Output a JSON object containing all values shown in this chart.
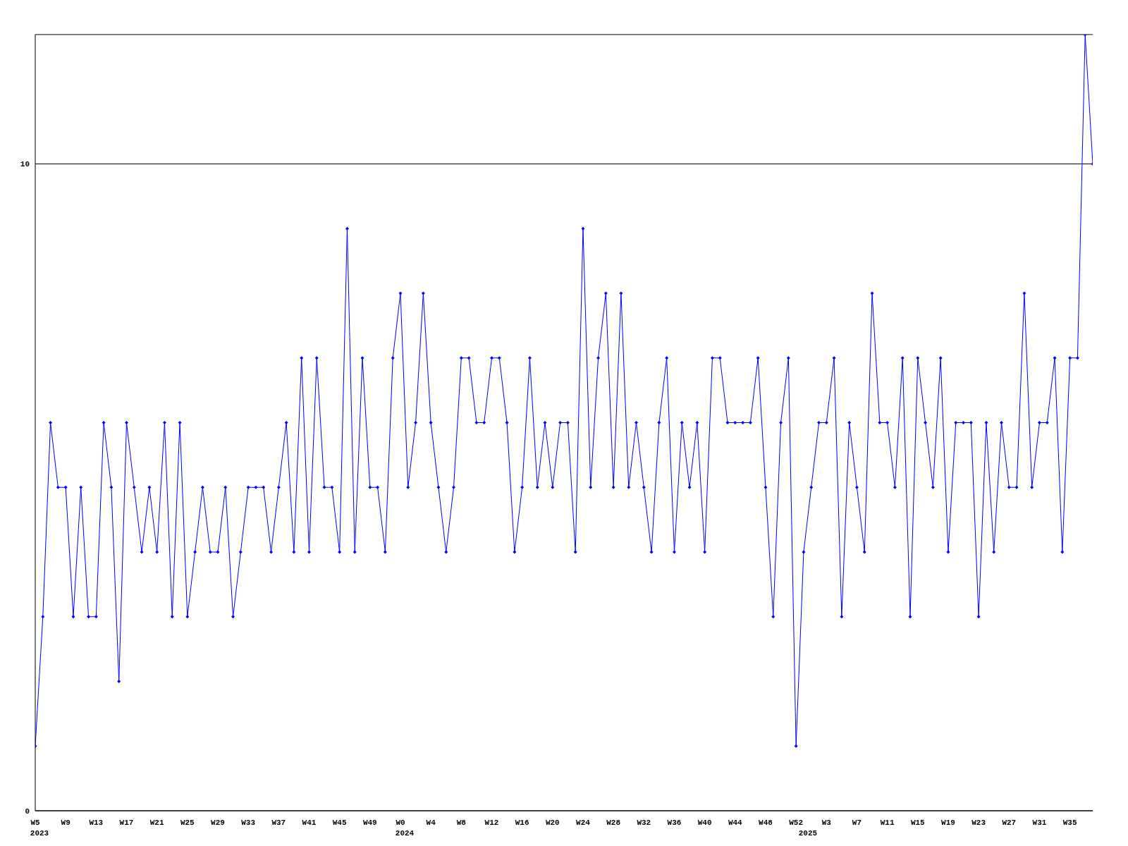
{
  "chart_data": {
    "type": "line",
    "categories": [
      "W5",
      null,
      null,
      null,
      "W9",
      null,
      null,
      null,
      "W13",
      null,
      null,
      null,
      "W17",
      null,
      null,
      null,
      "W21",
      null,
      null,
      null,
      "W25",
      null,
      null,
      null,
      "W29",
      null,
      null,
      null,
      "W33",
      null,
      null,
      null,
      "W37",
      null,
      null,
      null,
      "W41",
      null,
      null,
      null,
      "W45",
      null,
      null,
      null,
      "W49",
      null,
      null,
      null,
      "W0",
      null,
      null,
      null,
      "W4",
      null,
      null,
      null,
      "W8",
      null,
      null,
      null,
      "W12",
      null,
      null,
      null,
      "W16",
      null,
      null,
      null,
      "W20",
      null,
      null,
      null,
      "W24",
      null,
      null,
      null,
      "W28",
      null,
      null,
      null,
      "W32",
      null,
      null,
      null,
      "W36",
      null,
      null,
      null,
      "W40",
      null,
      null,
      null,
      "W44",
      null,
      null,
      null,
      "W48",
      null,
      null,
      null,
      "W52",
      null,
      null,
      null,
      "W3",
      null,
      null,
      null,
      "W7",
      null,
      null,
      null,
      "W11",
      null,
      null,
      null,
      "W15",
      null,
      null,
      null,
      "W19",
      null,
      null,
      null,
      "W23",
      null,
      null,
      null,
      "W27",
      null,
      null,
      null,
      "W31",
      null,
      null,
      null,
      "W35",
      null,
      null,
      null
    ],
    "series": [
      {
        "color": "#0000ff",
        "values": [
          1,
          3,
          6,
          5,
          5,
          3,
          5,
          3,
          3,
          6,
          5,
          2,
          6,
          5,
          4,
          5,
          4,
          6,
          3,
          6,
          3,
          4,
          5,
          4,
          4,
          5,
          3,
          4,
          5,
          5,
          5,
          4,
          5,
          6,
          4,
          7,
          4,
          7,
          5,
          5,
          4,
          9,
          4,
          7,
          5,
          5,
          4,
          7,
          8,
          5,
          6,
          8,
          6,
          5,
          4,
          5,
          7,
          7,
          6,
          6,
          7,
          7,
          6,
          4,
          5,
          7,
          5,
          6,
          5,
          6,
          6,
          4,
          9,
          5,
          7,
          8,
          5,
          8,
          5,
          6,
          5,
          4,
          6,
          7,
          4,
          6,
          5,
          6,
          4,
          7,
          7,
          6,
          6,
          6,
          6,
          7,
          5,
          3,
          6,
          7,
          1,
          4,
          5,
          6,
          6,
          7,
          3,
          6,
          5,
          4,
          8,
          6,
          6,
          5,
          7,
          3,
          7,
          6,
          5,
          7,
          4,
          6,
          6,
          6,
          3,
          6,
          4,
          6,
          5,
          5,
          8,
          5,
          6,
          6,
          7,
          4,
          7,
          7,
          12,
          10
        ]
      }
    ],
    "annotations": [
      "2023",
      "2024",
      "2025"
    ],
    "ylim": [
      0,
      12
    ],
    "yticks": [
      0,
      10
    ],
    "grid": "y",
    "legend": false,
    "marker": "diamond",
    "line_style": "solid"
  }
}
